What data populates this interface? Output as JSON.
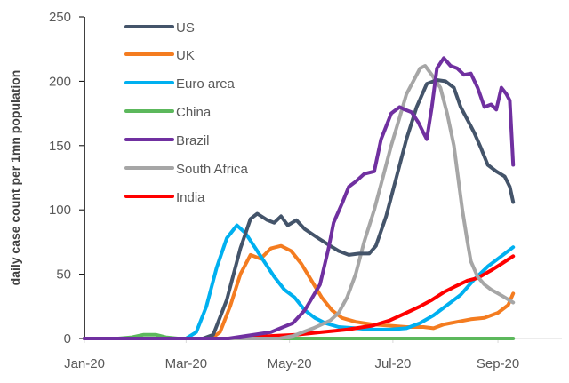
{
  "chart_data": {
    "type": "line",
    "title": "",
    "xlabel": "",
    "ylabel": "daily case count per 1mn population",
    "x_unit": "days since 1 Jan 2020",
    "ylim": [
      0,
      250
    ],
    "xlim": [
      0,
      253
    ],
    "yticks": [
      0,
      50,
      100,
      150,
      200,
      250
    ],
    "xticks": [
      {
        "day": 0,
        "label": "Jan-20"
      },
      {
        "day": 60,
        "label": "Mar-20"
      },
      {
        "day": 121,
        "label": "May-20"
      },
      {
        "day": 182,
        "label": "Jul-20"
      },
      {
        "day": 244,
        "label": "Sep-20"
      }
    ],
    "grid": false,
    "legend_position": "top-left",
    "series": [
      {
        "name": "US",
        "color": "#44546a",
        "points": [
          [
            0,
            0
          ],
          [
            70,
            0
          ],
          [
            76,
            3
          ],
          [
            84,
            30
          ],
          [
            92,
            70
          ],
          [
            98,
            93
          ],
          [
            102,
            97
          ],
          [
            108,
            92
          ],
          [
            112,
            90
          ],
          [
            116,
            95
          ],
          [
            120,
            88
          ],
          [
            125,
            92
          ],
          [
            130,
            85
          ],
          [
            138,
            78
          ],
          [
            145,
            72
          ],
          [
            150,
            68
          ],
          [
            156,
            65
          ],
          [
            162,
            66
          ],
          [
            168,
            66
          ],
          [
            172,
            72
          ],
          [
            178,
            95
          ],
          [
            184,
            125
          ],
          [
            190,
            155
          ],
          [
            196,
            180
          ],
          [
            202,
            198
          ],
          [
            208,
            201
          ],
          [
            213,
            200
          ],
          [
            218,
            195
          ],
          [
            222,
            180
          ],
          [
            226,
            170
          ],
          [
            230,
            160
          ],
          [
            234,
            148
          ],
          [
            238,
            135
          ],
          [
            243,
            130
          ],
          [
            248,
            126
          ],
          [
            251,
            118
          ],
          [
            253,
            106
          ]
        ]
      },
      {
        "name": "UK",
        "color": "#f47c20",
        "points": [
          [
            0,
            0
          ],
          [
            75,
            0
          ],
          [
            80,
            5
          ],
          [
            86,
            25
          ],
          [
            92,
            50
          ],
          [
            98,
            65
          ],
          [
            104,
            62
          ],
          [
            110,
            70
          ],
          [
            116,
            72
          ],
          [
            122,
            68
          ],
          [
            128,
            58
          ],
          [
            134,
            45
          ],
          [
            140,
            32
          ],
          [
            146,
            22
          ],
          [
            152,
            16
          ],
          [
            160,
            13
          ],
          [
            170,
            11
          ],
          [
            180,
            10
          ],
          [
            190,
            9
          ],
          [
            200,
            9
          ],
          [
            206,
            8
          ],
          [
            212,
            11
          ],
          [
            220,
            13
          ],
          [
            228,
            15
          ],
          [
            236,
            16
          ],
          [
            244,
            20
          ],
          [
            250,
            26
          ],
          [
            253,
            35
          ]
        ]
      },
      {
        "name": "Euro area",
        "color": "#00b0f0",
        "points": [
          [
            0,
            0
          ],
          [
            60,
            0
          ],
          [
            66,
            5
          ],
          [
            72,
            25
          ],
          [
            78,
            55
          ],
          [
            84,
            78
          ],
          [
            90,
            88
          ],
          [
            95,
            82
          ],
          [
            100,
            72
          ],
          [
            106,
            60
          ],
          [
            112,
            48
          ],
          [
            118,
            38
          ],
          [
            124,
            32
          ],
          [
            130,
            22
          ],
          [
            136,
            16
          ],
          [
            142,
            12
          ],
          [
            150,
            9
          ],
          [
            160,
            8
          ],
          [
            170,
            7
          ],
          [
            180,
            7
          ],
          [
            190,
            8
          ],
          [
            198,
            12
          ],
          [
            206,
            18
          ],
          [
            214,
            26
          ],
          [
            222,
            34
          ],
          [
            230,
            46
          ],
          [
            238,
            56
          ],
          [
            246,
            64
          ],
          [
            253,
            71
          ]
        ]
      },
      {
        "name": "China",
        "color": "#5cb85c",
        "points": [
          [
            0,
            0
          ],
          [
            20,
            0
          ],
          [
            28,
            1
          ],
          [
            35,
            3
          ],
          [
            42,
            3
          ],
          [
            48,
            1
          ],
          [
            55,
            0
          ],
          [
            253,
            0
          ]
        ]
      },
      {
        "name": "Brazil",
        "color": "#7030a0",
        "points": [
          [
            0,
            0
          ],
          [
            85,
            0
          ],
          [
            95,
            2
          ],
          [
            110,
            5
          ],
          [
            123,
            12
          ],
          [
            130,
            22
          ],
          [
            139,
            42
          ],
          [
            144,
            70
          ],
          [
            147,
            90
          ],
          [
            152,
            105
          ],
          [
            156,
            118
          ],
          [
            160,
            122
          ],
          [
            165,
            128
          ],
          [
            171,
            130
          ],
          [
            175,
            155
          ],
          [
            181,
            175
          ],
          [
            186,
            180
          ],
          [
            189,
            178
          ],
          [
            193,
            176
          ],
          [
            197,
            168
          ],
          [
            200,
            160
          ],
          [
            202,
            155
          ],
          [
            205,
            180
          ],
          [
            208,
            210
          ],
          [
            212,
            218
          ],
          [
            216,
            212
          ],
          [
            220,
            210
          ],
          [
            224,
            205
          ],
          [
            228,
            206
          ],
          [
            232,
            195
          ],
          [
            236,
            180
          ],
          [
            240,
            182
          ],
          [
            243,
            178
          ],
          [
            246,
            195
          ],
          [
            249,
            190
          ],
          [
            251,
            185
          ],
          [
            253,
            135
          ]
        ]
      },
      {
        "name": "South Africa",
        "color": "#a6a6a6",
        "points": [
          [
            0,
            0
          ],
          [
            115,
            0
          ],
          [
            123,
            2
          ],
          [
            135,
            8
          ],
          [
            145,
            14
          ],
          [
            150,
            20
          ],
          [
            155,
            32
          ],
          [
            160,
            50
          ],
          [
            165,
            75
          ],
          [
            171,
            100
          ],
          [
            176,
            125
          ],
          [
            181,
            150
          ],
          [
            186,
            172
          ],
          [
            190,
            190
          ],
          [
            194,
            200
          ],
          [
            198,
            210
          ],
          [
            201,
            212
          ],
          [
            205,
            205
          ],
          [
            210,
            195
          ],
          [
            214,
            175
          ],
          [
            218,
            150
          ],
          [
            221,
            120
          ],
          [
            223,
            100
          ],
          [
            226,
            75
          ],
          [
            228,
            60
          ],
          [
            232,
            48
          ],
          [
            236,
            42
          ],
          [
            240,
            38
          ],
          [
            244,
            35
          ],
          [
            248,
            32
          ],
          [
            253,
            28
          ]
        ]
      },
      {
        "name": "India",
        "color": "#ff0000",
        "points": [
          [
            0,
            0
          ],
          [
            90,
            0
          ],
          [
            110,
            2
          ],
          [
            125,
            3
          ],
          [
            140,
            5
          ],
          [
            155,
            7
          ],
          [
            170,
            10
          ],
          [
            180,
            14
          ],
          [
            190,
            20
          ],
          [
            198,
            25
          ],
          [
            205,
            30
          ],
          [
            212,
            36
          ],
          [
            218,
            40
          ],
          [
            226,
            45
          ],
          [
            232,
            47
          ],
          [
            240,
            53
          ],
          [
            246,
            58
          ],
          [
            253,
            64
          ]
        ]
      }
    ]
  }
}
